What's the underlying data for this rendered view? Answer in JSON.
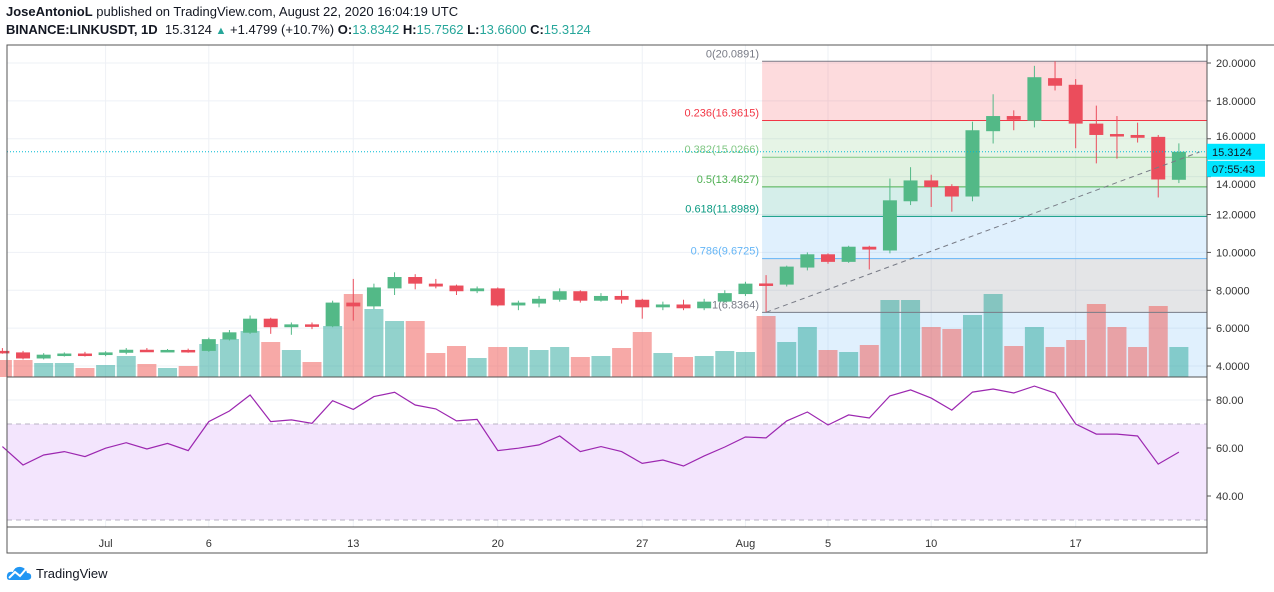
{
  "header": {
    "author": "JoseAntonioL",
    "published_text": "published on TradingView.com, August 22, 2020 16:04:19 UTC",
    "symbol": "BINANCE:LINKUSDT, 1D",
    "last": "15.3124",
    "change_icon": "triangle-up-icon",
    "change_glyph": "▲",
    "change": "+1.4799 (+10.7%)",
    "o_label": "O:",
    "o": "13.8342",
    "h_label": "H:",
    "h": "15.7562",
    "l_label": "L:",
    "l": "13.6600",
    "c_label": "C:",
    "c": "15.3124"
  },
  "footer": {
    "brand": "TradingView",
    "logo_icon": "tradingview-cloud-icon"
  },
  "colors": {
    "up": "#26a69a",
    "down": "#ef5350",
    "candle_up": "#53b987",
    "candle_down": "#eb4d5c",
    "rsi_line": "#9c27b0",
    "rsi_band": "#f3e5fd",
    "last_price": "#00e5ff"
  },
  "chart_data": {
    "type": "candlestick",
    "price_axis": {
      "ticks": [
        "20.0000",
        "18.0000",
        "16.0000",
        "14.0000",
        "12.0000",
        "10.0000",
        "8.0000",
        "6.0000",
        "4.0000"
      ],
      "range": [
        3.5,
        21
      ]
    },
    "last_price_label": "15.3124",
    "countdown_label": "07:55:43",
    "time_axis": {
      "labels": [
        {
          "text": "Jul",
          "date": "2020-07-01"
        },
        {
          "text": "6",
          "date": "2020-07-06"
        },
        {
          "text": "13",
          "date": "2020-07-13"
        },
        {
          "text": "20",
          "date": "2020-07-20"
        },
        {
          "text": "27",
          "date": "2020-07-27"
        },
        {
          "text": "Aug",
          "date": "2020-08-01"
        },
        {
          "text": "5",
          "date": "2020-08-05"
        },
        {
          "text": "10",
          "date": "2020-08-10"
        },
        {
          "text": "17",
          "date": "2020-08-17"
        }
      ]
    },
    "candles": [
      {
        "d": "2020-06-26",
        "o": 4.8,
        "h": 4.95,
        "l": 4.65,
        "c": 4.72,
        "v": 17
      },
      {
        "d": "2020-06-27",
        "o": 4.72,
        "h": 4.8,
        "l": 4.35,
        "c": 4.4,
        "v": 17
      },
      {
        "d": "2020-06-28",
        "o": 4.4,
        "h": 4.68,
        "l": 4.35,
        "c": 4.6,
        "v": 14
      },
      {
        "d": "2020-06-29",
        "o": 4.58,
        "h": 4.72,
        "l": 4.5,
        "c": 4.66,
        "v": 14
      },
      {
        "d": "2020-06-30",
        "o": 4.66,
        "h": 4.75,
        "l": 4.5,
        "c": 4.57,
        "v": 9
      },
      {
        "d": "2020-07-01",
        "o": 4.58,
        "h": 4.78,
        "l": 4.52,
        "c": 4.72,
        "v": 12
      },
      {
        "d": "2020-07-02",
        "o": 4.7,
        "h": 4.95,
        "l": 4.62,
        "c": 4.86,
        "v": 21
      },
      {
        "d": "2020-07-03",
        "o": 4.86,
        "h": 4.95,
        "l": 4.75,
        "c": 4.78,
        "v": 13
      },
      {
        "d": "2020-07-04",
        "o": 4.78,
        "h": 4.9,
        "l": 4.74,
        "c": 4.85,
        "v": 9
      },
      {
        "d": "2020-07-05",
        "o": 4.85,
        "h": 4.92,
        "l": 4.7,
        "c": 4.78,
        "v": 11
      },
      {
        "d": "2020-07-06",
        "o": 4.8,
        "h": 5.5,
        "l": 4.75,
        "c": 5.42,
        "v": 33
      },
      {
        "d": "2020-07-07",
        "o": 5.4,
        "h": 5.9,
        "l": 5.35,
        "c": 5.78,
        "v": 38
      },
      {
        "d": "2020-07-08",
        "o": 5.76,
        "h": 6.67,
        "l": 5.7,
        "c": 6.5,
        "v": 46
      },
      {
        "d": "2020-07-09",
        "o": 6.5,
        "h": 6.55,
        "l": 5.7,
        "c": 6.05,
        "v": 35
      },
      {
        "d": "2020-07-10",
        "o": 6.05,
        "h": 6.3,
        "l": 5.65,
        "c": 6.2,
        "v": 27
      },
      {
        "d": "2020-07-11",
        "o": 6.2,
        "h": 6.3,
        "l": 5.95,
        "c": 6.1,
        "v": 15
      },
      {
        "d": "2020-07-12",
        "o": 6.1,
        "h": 7.45,
        "l": 6.05,
        "c": 7.35,
        "v": 51
      },
      {
        "d": "2020-07-13",
        "o": 7.35,
        "h": 8.6,
        "l": 6.4,
        "c": 7.15,
        "v": 83
      },
      {
        "d": "2020-07-14",
        "o": 7.15,
        "h": 8.35,
        "l": 7.0,
        "c": 8.15,
        "v": 68
      },
      {
        "d": "2020-07-15",
        "o": 8.1,
        "h": 8.95,
        "l": 7.75,
        "c": 8.7,
        "v": 56
      },
      {
        "d": "2020-07-16",
        "o": 8.7,
        "h": 8.85,
        "l": 8.05,
        "c": 8.35,
        "v": 56
      },
      {
        "d": "2020-07-17",
        "o": 8.35,
        "h": 8.6,
        "l": 8.1,
        "c": 8.2,
        "v": 24
      },
      {
        "d": "2020-07-18",
        "o": 8.25,
        "h": 8.3,
        "l": 7.75,
        "c": 7.95,
        "v": 31
      },
      {
        "d": "2020-07-19",
        "o": 7.95,
        "h": 8.2,
        "l": 7.85,
        "c": 8.1,
        "v": 19
      },
      {
        "d": "2020-07-20",
        "o": 8.1,
        "h": 8.15,
        "l": 7.15,
        "c": 7.2,
        "v": 30
      },
      {
        "d": "2020-07-21",
        "o": 7.2,
        "h": 7.45,
        "l": 6.95,
        "c": 7.35,
        "v": 30
      },
      {
        "d": "2020-07-22",
        "o": 7.3,
        "h": 7.7,
        "l": 7.1,
        "c": 7.55,
        "v": 27
      },
      {
        "d": "2020-07-23",
        "o": 7.5,
        "h": 8.1,
        "l": 7.4,
        "c": 7.95,
        "v": 30
      },
      {
        "d": "2020-07-24",
        "o": 7.95,
        "h": 8.0,
        "l": 7.35,
        "c": 7.45,
        "v": 20
      },
      {
        "d": "2020-07-25",
        "o": 7.45,
        "h": 7.85,
        "l": 7.4,
        "c": 7.7,
        "v": 21
      },
      {
        "d": "2020-07-26",
        "o": 7.7,
        "h": 8.0,
        "l": 7.3,
        "c": 7.5,
        "v": 29
      },
      {
        "d": "2020-07-27",
        "o": 7.5,
        "h": 7.55,
        "l": 6.5,
        "c": 7.1,
        "v": 45
      },
      {
        "d": "2020-07-28",
        "o": 7.1,
        "h": 7.4,
        "l": 6.95,
        "c": 7.25,
        "v": 24
      },
      {
        "d": "2020-07-29",
        "o": 7.25,
        "h": 7.5,
        "l": 6.95,
        "c": 7.05,
        "v": 20
      },
      {
        "d": "2020-07-30",
        "o": 7.05,
        "h": 7.55,
        "l": 6.95,
        "c": 7.4,
        "v": 21
      },
      {
        "d": "2020-07-31",
        "o": 7.4,
        "h": 8.0,
        "l": 7.35,
        "c": 7.85,
        "v": 26
      },
      {
        "d": "2020-08-01",
        "o": 7.8,
        "h": 8.45,
        "l": 7.7,
        "c": 8.35,
        "v": 25
      },
      {
        "d": "2020-08-02",
        "o": 8.36,
        "h": 8.8,
        "l": 6.84,
        "c": 8.25,
        "v": 61
      },
      {
        "d": "2020-08-03",
        "o": 8.3,
        "h": 9.3,
        "l": 8.2,
        "c": 9.25,
        "v": 35
      },
      {
        "d": "2020-08-04",
        "o": 9.2,
        "h": 10.0,
        "l": 9.05,
        "c": 9.9,
        "v": 50
      },
      {
        "d": "2020-08-05",
        "o": 9.9,
        "h": 9.95,
        "l": 9.4,
        "c": 9.5,
        "v": 27
      },
      {
        "d": "2020-08-06",
        "o": 9.5,
        "h": 10.35,
        "l": 9.45,
        "c": 10.3,
        "v": 25
      },
      {
        "d": "2020-08-07",
        "o": 10.3,
        "h": 10.35,
        "l": 9.1,
        "c": 10.15,
        "v": 32
      },
      {
        "d": "2020-08-08",
        "o": 10.1,
        "h": 13.9,
        "l": 9.95,
        "c": 12.75,
        "v": 77
      },
      {
        "d": "2020-08-09",
        "o": 12.7,
        "h": 14.5,
        "l": 12.5,
        "c": 13.8,
        "v": 77
      },
      {
        "d": "2020-08-10",
        "o": 13.8,
        "h": 14.1,
        "l": 12.4,
        "c": 13.45,
        "v": 50
      },
      {
        "d": "2020-08-11",
        "o": 13.5,
        "h": 13.6,
        "l": 12.15,
        "c": 12.95,
        "v": 48
      },
      {
        "d": "2020-08-12",
        "o": 12.95,
        "h": 16.9,
        "l": 12.7,
        "c": 16.45,
        "v": 62
      },
      {
        "d": "2020-08-13",
        "o": 16.4,
        "h": 18.35,
        "l": 15.75,
        "c": 17.2,
        "v": 83
      },
      {
        "d": "2020-08-14",
        "o": 17.2,
        "h": 17.5,
        "l": 16.45,
        "c": 17.0,
        "v": 31
      },
      {
        "d": "2020-08-15",
        "o": 16.95,
        "h": 19.85,
        "l": 16.6,
        "c": 19.25,
        "v": 50
      },
      {
        "d": "2020-08-16",
        "o": 19.2,
        "h": 20.09,
        "l": 18.55,
        "c": 18.8,
        "v": 30
      },
      {
        "d": "2020-08-17",
        "o": 18.85,
        "h": 19.15,
        "l": 15.5,
        "c": 16.8,
        "v": 37
      },
      {
        "d": "2020-08-18",
        "o": 16.8,
        "h": 17.75,
        "l": 14.7,
        "c": 16.2,
        "v": 73
      },
      {
        "d": "2020-08-19",
        "o": 16.25,
        "h": 17.2,
        "l": 14.95,
        "c": 16.2,
        "v": 50
      },
      {
        "d": "2020-08-20",
        "o": 16.2,
        "h": 16.85,
        "l": 15.8,
        "c": 16.05,
        "v": 30
      },
      {
        "d": "2020-08-21",
        "o": 16.1,
        "h": 16.2,
        "l": 12.9,
        "c": 13.85,
        "v": 71
      },
      {
        "d": "2020-08-22",
        "o": 13.8342,
        "h": 15.7562,
        "l": 13.66,
        "c": 15.3124,
        "v": 30
      }
    ],
    "volume_note_units": "relative",
    "fibonacci": {
      "start_date": "2020-08-02",
      "levels": [
        {
          "label": "0(20.0891)",
          "price": 20.0891,
          "color": "#787b86",
          "fill": "rgba(242,54,69,0.18)"
        },
        {
          "label": "0.236(16.9615)",
          "price": 16.9615,
          "color": "#f23645",
          "fill": "rgba(129,199,132,0.2)"
        },
        {
          "label": "0.382(15.0266)",
          "price": 15.0266,
          "color": "#81c784",
          "fill": "rgba(76,175,80,0.17)"
        },
        {
          "label": "0.5(13.4627)",
          "price": 13.4627,
          "color": "#4caf50",
          "fill": "rgba(8,153,129,0.17)"
        },
        {
          "label": "0.618(11.8989)",
          "price": 11.8989,
          "color": "#089981",
          "fill": "rgba(100,181,246,0.2)"
        },
        {
          "label": "0.786(9.6725)",
          "price": 9.6725,
          "color": "#64b5f6",
          "fill": "rgba(120,123,134,0.2)"
        },
        {
          "label": "1(6.8364)",
          "price": 6.8364,
          "color": "#787b86",
          "fill": "rgba(100,181,246,0.2)"
        }
      ],
      "trend_line": {
        "from": {
          "date": "2020-08-02",
          "price": 6.8364
        },
        "to": {
          "date": "2020-08-23",
          "price": 15.3
        }
      }
    },
    "rsi": {
      "axis_ticks": [
        "80.00",
        "60.00",
        "40.00"
      ],
      "upper_band": 70,
      "lower_band": 30,
      "range": [
        20,
        90
      ],
      "values": [
        60.6,
        52.9,
        57.1,
        58.5,
        56.4,
        59.9,
        62.2,
        59.6,
        61.9,
        58.9,
        71,
        75.4,
        82.1,
        71,
        71.7,
        70.3,
        79.7,
        76.1,
        81.4,
        83.2,
        77.9,
        76.3,
        71.3,
        71.9,
        58.9,
        59.9,
        61.3,
        65,
        58.5,
        60.6,
        58.5,
        53.6,
        55,
        52.5,
        56.7,
        60.4,
        64.6,
        64.2,
        71.3,
        75,
        69.6,
        73.8,
        72.5,
        81.7,
        84.2,
        80.8,
        75.8,
        83.3,
        84.6,
        82.9,
        85.8,
        82.9,
        70,
        65.8,
        65.8,
        65,
        53.3,
        58.3
      ]
    }
  }
}
